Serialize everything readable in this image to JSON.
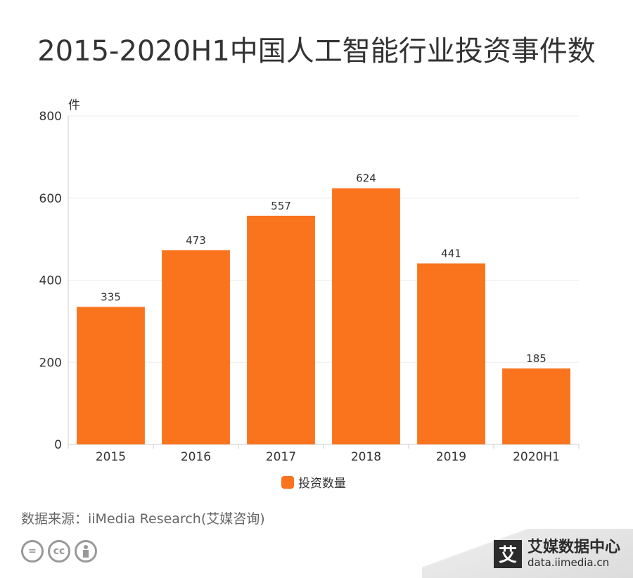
{
  "title": "2015-2020H1中国人工智能行业投资事件数",
  "source": "数据来源：iiMedia Research(艾媒咨询)",
  "brand": {
    "logo_char": "艾",
    "name": "艾媒数据中心",
    "url": "data.iimedia.cn"
  },
  "license_icons": [
    "equals-icon",
    "cc-icon",
    "person-icon"
  ],
  "colors": {
    "bar": "#FA731D",
    "axis": "#cccccc",
    "grid": "#eeeeee",
    "text": "#333333"
  },
  "chart_data": {
    "type": "bar",
    "categories": [
      "2015",
      "2016",
      "2017",
      "2018",
      "2019",
      "2020H1"
    ],
    "series": [
      {
        "name": "投资数量",
        "values": [
          335,
          473,
          557,
          624,
          441,
          185
        ]
      }
    ],
    "ylabel": "件",
    "ylim": [
      0,
      800
    ],
    "yticks": [
      0,
      200,
      400,
      600,
      800
    ],
    "data_labels": true,
    "grid": true,
    "legend": "bottom-center"
  }
}
